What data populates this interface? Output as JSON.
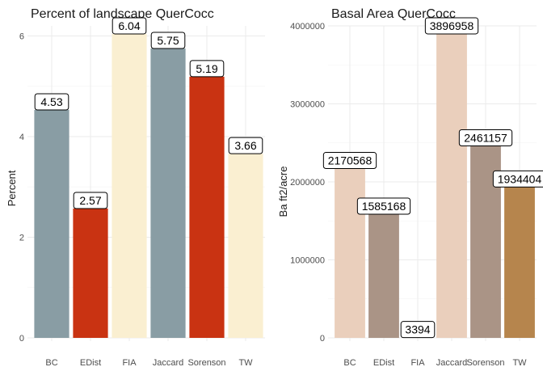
{
  "chart_data": [
    {
      "type": "bar",
      "title": "Percent of landscape  QuerCocc",
      "xlabel": "",
      "ylabel": "Percent",
      "categories": [
        "BC",
        "EDist",
        "FIA",
        "Jaccard",
        "Sorenson",
        "TW"
      ],
      "values": [
        4.53,
        2.57,
        6.04,
        5.75,
        5.19,
        3.66
      ],
      "data_labels": [
        "4.53",
        "2.57",
        "6.04",
        "5.75",
        "5.19",
        "3.66"
      ],
      "colors": [
        "#899DA4",
        "#C93312",
        "#FAEFD1",
        "#899DA4",
        "#C93312",
        "#FAEFD1"
      ],
      "ylim": [
        0,
        6.2
      ],
      "yticks": [
        0,
        2,
        4,
        6
      ],
      "ytick_labels": [
        "0",
        "2",
        "4",
        "6"
      ],
      "grid": true,
      "legend": "none"
    },
    {
      "type": "bar",
      "title": "Basal Area  QuerCocc",
      "xlabel": "",
      "ylabel": "Ba ft2/acre",
      "categories": [
        "BC",
        "EDist",
        "FIA",
        "Jaccard",
        "Sorenson",
        "TW"
      ],
      "values": [
        2170568,
        1585168,
        3394,
        3896958,
        2461157,
        1934404
      ],
      "data_labels": [
        "2170568",
        "1585168",
        "3394",
        "3896958",
        "2461157",
        "1934404"
      ],
      "colors": [
        "#EACFBC",
        "#AA9486",
        "#B6854D",
        "#EACFBC",
        "#AA9486",
        "#B6854D"
      ],
      "ylim": [
        0,
        4000000
      ],
      "yticks": [
        0,
        1000000,
        2000000,
        3000000,
        4000000
      ],
      "ytick_labels": [
        "0",
        "1000000",
        "2000000",
        "3000000",
        "4000000"
      ],
      "grid": true,
      "legend": "none"
    }
  ]
}
